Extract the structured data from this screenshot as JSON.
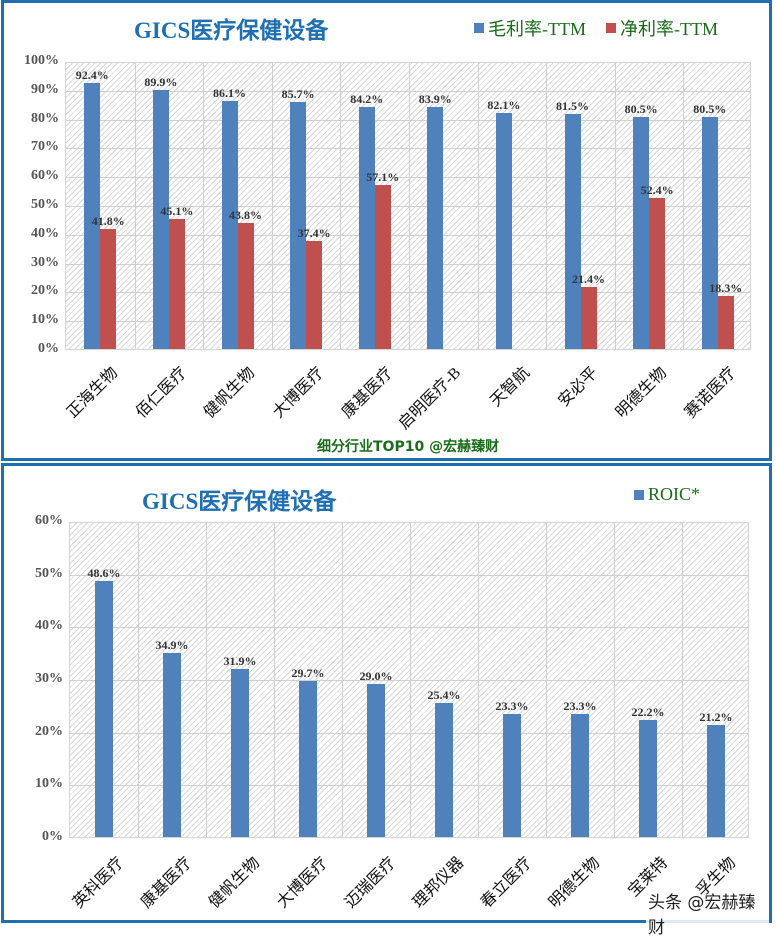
{
  "chart_data": [
    {
      "type": "bar",
      "title": "GICS医疗保健设备",
      "categories": [
        "正海生物",
        "佰仁医疗",
        "健帆生物",
        "大博医疗",
        "康基医疗",
        "启明医疗-B",
        "天智航",
        "安必平",
        "明德生物",
        "赛诺医疗"
      ],
      "series": [
        {
          "name": "毛利率-TTM",
          "color": "#4f81bd",
          "values": [
            92.4,
            89.9,
            86.1,
            85.7,
            84.2,
            83.9,
            82.1,
            81.5,
            80.5,
            80.5
          ],
          "labels": [
            "92.4%",
            "89.9%",
            "86.1%",
            "85.7%",
            "84.2%",
            "83.9%",
            "82.1%",
            "81.5%",
            "80.5%",
            "80.5%"
          ]
        },
        {
          "name": "净利率-TTM",
          "color": "#c0504d",
          "values": [
            41.8,
            45.1,
            43.8,
            37.4,
            57.1,
            null,
            null,
            21.4,
            52.4,
            18.3
          ],
          "labels": [
            "41.8%",
            "45.1%",
            "43.8%",
            "37.4%",
            "57.1%",
            "",
            "",
            "21.4%",
            "52.4%",
            "18.3%"
          ]
        }
      ],
      "ylim": [
        0,
        100
      ],
      "yticks": [
        "0%",
        "10%",
        "20%",
        "30%",
        "40%",
        "50%",
        "60%",
        "70%",
        "80%",
        "90%",
        "100%"
      ],
      "xlabel": "",
      "ylabel": "",
      "grid": true,
      "legend_position": "top-right",
      "footer": "细分行业TOP10 @宏赫臻财"
    },
    {
      "type": "bar",
      "title": "GICS医疗保健设备",
      "categories": [
        "英科医疗",
        "康基医疗",
        "健帆生物",
        "大博医疗",
        "迈瑞医疗",
        "理邦仪器",
        "春立医疗",
        "明德生物",
        "宝莱特",
        "孚生物"
      ],
      "series": [
        {
          "name": "ROIC*",
          "color": "#4f81bd",
          "values": [
            48.6,
            34.9,
            31.9,
            29.7,
            29.0,
            25.4,
            23.3,
            23.3,
            22.2,
            21.2
          ],
          "labels": [
            "48.6%",
            "34.9%",
            "31.9%",
            "29.7%",
            "29.0%",
            "25.4%",
            "23.3%",
            "23.3%",
            "22.2%",
            "21.2%"
          ]
        }
      ],
      "ylim": [
        0,
        60
      ],
      "yticks": [
        "0%",
        "10%",
        "20%",
        "30%",
        "40%",
        "50%",
        "60%"
      ],
      "xlabel": "",
      "ylabel": "",
      "grid": true,
      "legend_position": "top-right"
    }
  ],
  "top": {
    "title": "GICS医疗保健设备",
    "legend": [
      "毛利率-TTM",
      "净利率-TTM"
    ],
    "footer": "细分行业TOP10 @宏赫臻财"
  },
  "bottom": {
    "title": "GICS医疗保健设备",
    "legend": [
      "ROIC*"
    ],
    "watermark": "头条 @宏赫臻财"
  }
}
